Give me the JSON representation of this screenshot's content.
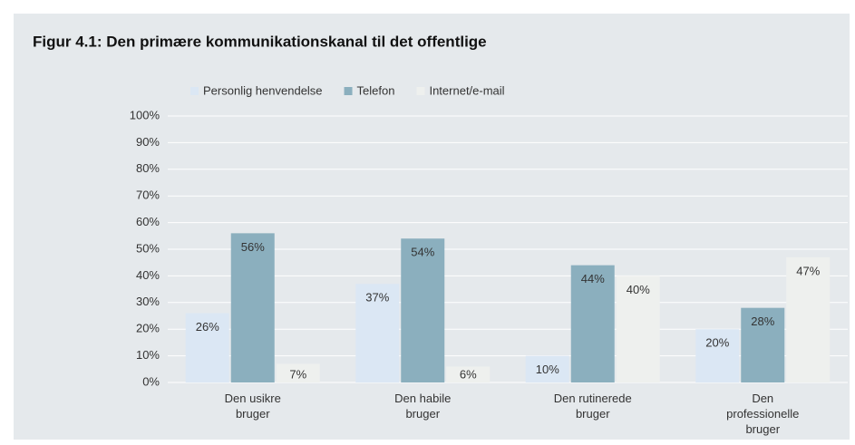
{
  "chart_data": {
    "type": "bar",
    "title": "Figur 4.1: Den primære kommunikationskanal til det offentlige",
    "categories": [
      "Den usikre bruger",
      "Den habile bruger",
      "Den rutinerede bruger",
      "Den professionelle bruger"
    ],
    "series": [
      {
        "name": "Personlig henvendelse",
        "color": "#dbe7f4",
        "values": [
          26,
          37,
          10,
          20
        ],
        "value_labels": [
          "26%",
          "37%",
          "10%",
          "20%"
        ]
      },
      {
        "name": "Telefon",
        "color": "#8bafbe",
        "values": [
          56,
          54,
          44,
          28
        ],
        "value_labels": [
          "56%",
          "54%",
          "44%",
          "28%"
        ]
      },
      {
        "name": "Internet/e-mail",
        "color": "#eef0ee",
        "values": [
          7,
          6,
          40,
          47
        ],
        "value_labels": [
          "7%",
          "6%",
          "40%",
          "47%"
        ]
      }
    ],
    "ylim": [
      0,
      100
    ],
    "yticks": [
      {
        "value": 0,
        "label": "0%"
      },
      {
        "value": 10,
        "label": "10%"
      },
      {
        "value": 20,
        "label": "20%"
      },
      {
        "value": 30,
        "label": "30%"
      },
      {
        "value": 40,
        "label": "40%"
      },
      {
        "value": 50,
        "label": "50%"
      },
      {
        "value": 60,
        "label": "60%"
      },
      {
        "value": 70,
        "label": "70%"
      },
      {
        "value": 80,
        "label": "80%"
      },
      {
        "value": 90,
        "label": "90%"
      },
      {
        "value": 100,
        "label": "100%"
      }
    ],
    "grid": true,
    "legend": "top"
  }
}
